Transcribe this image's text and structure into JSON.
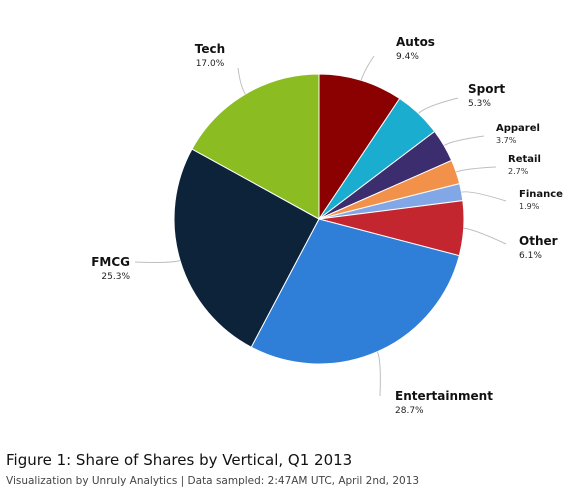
{
  "chart_data": {
    "type": "pie",
    "categories": [
      "Autos",
      "Sport",
      "Apparel",
      "Retail",
      "Finance",
      "Other",
      "Entertainment",
      "FMCG",
      "Tech"
    ],
    "values": [
      9.4,
      5.3,
      3.7,
      2.7,
      1.9,
      6.1,
      28.7,
      25.3,
      17.0
    ],
    "value_labels": [
      "9.4%",
      "5.3%",
      "3.7%",
      "2.7%",
      "1.9%",
      "6.1%",
      "28.7%",
      "25.3%",
      "17.0%"
    ],
    "colors": [
      "#8b0000",
      "#1badcf",
      "#3b2d6e",
      "#f2914a",
      "#82a7e6",
      "#c3262e",
      "#2f7ed8",
      "#0d233a",
      "#8bbc21"
    ],
    "start_angle_deg": 0,
    "direction": "clockwise"
  },
  "caption": {
    "title": "Figure 1: Share of Shares by Vertical, Q1 2013",
    "subtitle": "Visualization by Unruly Analytics | Data sampled: 2:47AM UTC, April 2nd, 2013"
  }
}
